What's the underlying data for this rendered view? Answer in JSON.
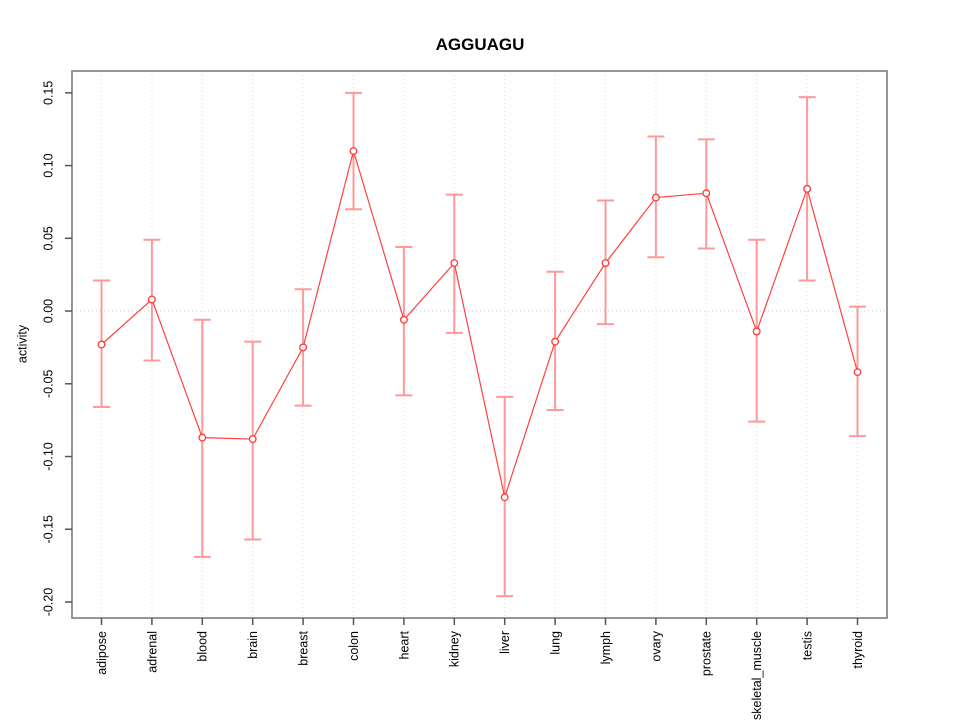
{
  "chart_data": {
    "type": "line",
    "title": "AGGUAGU",
    "xlabel": "",
    "ylabel": "activity",
    "categories": [
      "adipose",
      "adrenal",
      "blood",
      "brain",
      "breast",
      "colon",
      "heart",
      "kidney",
      "liver",
      "lung",
      "lymph",
      "ovary",
      "prostate",
      "skeletal_muscle",
      "testis",
      "thyroid"
    ],
    "series": [
      {
        "name": "activity",
        "values": [
          -0.023,
          0.008,
          -0.087,
          -0.088,
          -0.025,
          0.11,
          -0.006,
          0.033,
          -0.128,
          -0.021,
          0.033,
          0.078,
          0.081,
          -0.014,
          0.084,
          -0.042
        ],
        "lower": [
          -0.066,
          -0.034,
          -0.169,
          -0.157,
          -0.065,
          0.07,
          -0.058,
          -0.015,
          -0.196,
          -0.068,
          -0.009,
          0.037,
          0.043,
          -0.076,
          0.021,
          -0.086
        ],
        "upper": [
          0.021,
          0.049,
          -0.006,
          -0.021,
          0.015,
          0.15,
          0.044,
          0.08,
          -0.059,
          0.027,
          0.076,
          0.12,
          0.118,
          0.049,
          0.147,
          0.003
        ]
      }
    ],
    "ytick_labels": [
      "0.15",
      "0.10",
      "0.05",
      "0.00",
      "-0.05",
      "-0.10",
      "-0.15",
      "-0.20"
    ],
    "ylim": [
      -0.211,
      0.165
    ],
    "grid": "vertical dotted gridlines at each category; dotted horizontal line at zero",
    "legend": "none",
    "marker": "open-circle",
    "error_bars": true,
    "colors": {
      "line": "#ff4040",
      "point": "#ff3838",
      "error_bar": "#ff9999",
      "box": "#8a8a8a",
      "tick": "#555555",
      "grid": "#dcdcdc",
      "zero_line": "#cfcfcf",
      "text": "#000000",
      "background": "#ffffff"
    }
  }
}
